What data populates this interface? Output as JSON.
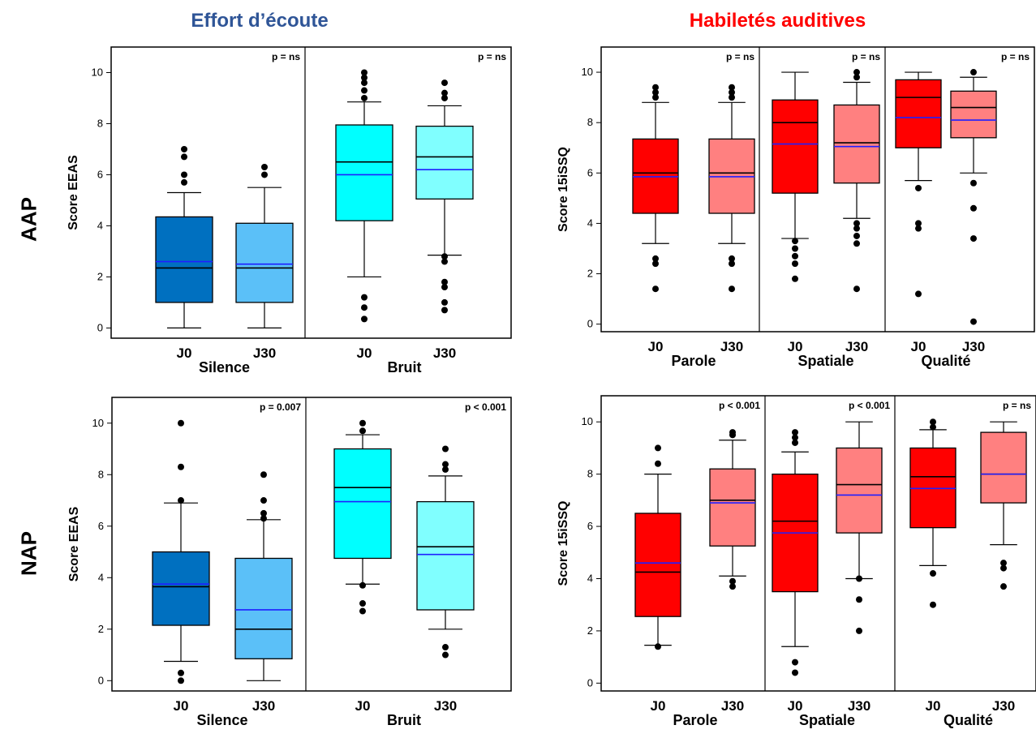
{
  "headings": {
    "left": {
      "text": "Effort d’écoute",
      "color": "#2F5597"
    },
    "right": {
      "text": "Habiletés auditives",
      "color": "#FF0000"
    }
  },
  "row_labels": {
    "top": "AAP",
    "bottom": "NAP"
  },
  "chart_data": [
    {
      "type": "box",
      "id": "aap-eeas",
      "ylabel": "Score EEAS",
      "ylim": [
        -0.4,
        11
      ],
      "yticks": [
        0,
        2,
        4,
        6,
        8,
        10
      ],
      "groups": [
        {
          "label": "Silence",
          "p_value": "p = ns"
        },
        {
          "label": "Bruit",
          "p_value": "p = ns"
        }
      ],
      "boxes": [
        {
          "category": "J0",
          "group": 0,
          "color": "#0070C0",
          "q1": 1.0,
          "median": 2.35,
          "mean": 2.6,
          "q3": 4.35,
          "whisker_low": 0,
          "whisker_high": 5.3,
          "outliers": [
            5.7,
            6.0,
            6.7,
            7.0
          ]
        },
        {
          "category": "J30",
          "group": 0,
          "color": "#5BC0F8",
          "q1": 1.0,
          "median": 2.35,
          "mean": 2.5,
          "q3": 4.1,
          "whisker_low": 0,
          "whisker_high": 5.5,
          "outliers": [
            6.0,
            6.3
          ]
        },
        {
          "category": "J0",
          "group": 1,
          "color": "#00FFFF",
          "q1": 4.2,
          "median": 6.5,
          "mean": 6.0,
          "q3": 7.95,
          "whisker_low": 2.0,
          "whisker_high": 8.85,
          "outliers": [
            0.35,
            0.8,
            1.2,
            9.0,
            9.3,
            9.6,
            9.8,
            10.0
          ]
        },
        {
          "category": "J30",
          "group": 1,
          "color": "#80FFFF",
          "q1": 5.05,
          "median": 6.7,
          "mean": 6.2,
          "q3": 7.9,
          "whisker_low": 2.85,
          "whisker_high": 8.7,
          "outliers": [
            0.7,
            1.0,
            1.6,
            1.8,
            2.6,
            2.8,
            9.0,
            9.2,
            9.6
          ]
        }
      ]
    },
    {
      "type": "box",
      "id": "aap-ssq",
      "ylabel": "Score 15iSSQ",
      "ylim": [
        -0.3,
        11
      ],
      "yticks": [
        0,
        2,
        4,
        6,
        8,
        10
      ],
      "groups": [
        {
          "label": "Parole",
          "p_value": "p = ns"
        },
        {
          "label": "Spatiale",
          "p_value": "p = ns"
        },
        {
          "label": "Qualité",
          "p_value": "p = ns"
        }
      ],
      "boxes": [
        {
          "category": "J0",
          "group": 0,
          "color": "#FF0000",
          "q1": 4.4,
          "median": 6.0,
          "mean": 5.85,
          "q3": 7.35,
          "whisker_low": 3.2,
          "whisker_high": 8.8,
          "outliers": [
            1.4,
            2.4,
            2.6,
            9.0,
            9.2,
            9.4
          ]
        },
        {
          "category": "J30",
          "group": 0,
          "color": "#FF8080",
          "q1": 4.4,
          "median": 6.0,
          "mean": 5.85,
          "q3": 7.35,
          "whisker_low": 3.2,
          "whisker_high": 8.8,
          "outliers": [
            1.4,
            2.4,
            2.6,
            9.0,
            9.2,
            9.4
          ]
        },
        {
          "category": "J0",
          "group": 1,
          "color": "#FF0000",
          "q1": 5.2,
          "median": 8.0,
          "mean": 7.15,
          "q3": 8.9,
          "whisker_low": 3.4,
          "whisker_high": 10.0,
          "outliers": [
            1.8,
            2.4,
            2.7,
            3.0,
            3.3
          ]
        },
        {
          "category": "J30",
          "group": 1,
          "color": "#FF8080",
          "q1": 5.6,
          "median": 7.2,
          "mean": 7.05,
          "q3": 8.7,
          "whisker_low": 4.2,
          "whisker_high": 9.6,
          "outliers": [
            1.4,
            3.2,
            3.5,
            3.8,
            4.0,
            9.8,
            10.0
          ]
        },
        {
          "category": "J0",
          "group": 2,
          "color": "#FF0000",
          "q1": 7.0,
          "median": 9.0,
          "mean": 8.2,
          "q3": 9.7,
          "whisker_low": 5.7,
          "whisker_high": 10.0,
          "outliers": [
            1.2,
            3.8,
            4.0,
            5.4
          ]
        },
        {
          "category": "J30",
          "group": 2,
          "color": "#FF8080",
          "q1": 7.4,
          "median": 8.6,
          "mean": 8.1,
          "q3": 9.25,
          "whisker_low": 6.0,
          "whisker_high": 9.8,
          "outliers": [
            0.1,
            3.4,
            4.6,
            5.6,
            10.0
          ]
        }
      ]
    },
    {
      "type": "box",
      "id": "nap-eeas",
      "ylabel": "Score EEAS",
      "ylim": [
        -0.4,
        11
      ],
      "yticks": [
        0,
        2,
        4,
        6,
        8,
        10
      ],
      "groups": [
        {
          "label": "Silence",
          "p_value": "p = 0.007"
        },
        {
          "label": "Bruit",
          "p_value": "p < 0.001"
        }
      ],
      "boxes": [
        {
          "category": "J0",
          "group": 0,
          "color": "#0070C0",
          "q1": 2.15,
          "median": 3.65,
          "mean": 3.75,
          "q3": 5.0,
          "whisker_low": 0.75,
          "whisker_high": 6.9,
          "outliers": [
            0.0,
            0.3,
            7.0,
            8.3,
            10.0
          ]
        },
        {
          "category": "J30",
          "group": 0,
          "color": "#5BC0F8",
          "q1": 0.85,
          "median": 2.0,
          "mean": 2.75,
          "q3": 4.75,
          "whisker_low": 0,
          "whisker_high": 6.25,
          "outliers": [
            6.3,
            6.5,
            7.0,
            8.0
          ]
        },
        {
          "category": "J0",
          "group": 1,
          "color": "#00FFFF",
          "q1": 4.75,
          "median": 7.5,
          "mean": 6.95,
          "q3": 9.0,
          "whisker_low": 3.75,
          "whisker_high": 9.55,
          "outliers": [
            2.7,
            3.0,
            3.7,
            9.7,
            10.0
          ]
        },
        {
          "category": "J30",
          "group": 1,
          "color": "#80FFFF",
          "q1": 2.75,
          "median": 5.2,
          "mean": 4.9,
          "q3": 6.95,
          "whisker_low": 2.0,
          "whisker_high": 7.95,
          "outliers": [
            1.0,
            1.3,
            8.2,
            8.4,
            9.0
          ]
        }
      ]
    },
    {
      "type": "box",
      "id": "nap-ssq",
      "ylabel": "Score 15iSSQ",
      "ylim": [
        -0.3,
        11
      ],
      "yticks": [
        0,
        2,
        4,
        6,
        8,
        10
      ],
      "groups": [
        {
          "label": "Parole",
          "p_value": "p < 0.001"
        },
        {
          "label": "Spatiale",
          "p_value": "p < 0.001"
        },
        {
          "label": "Qualité",
          "p_value": "p = ns"
        }
      ],
      "boxes": [
        {
          "category": "J0",
          "group": 0,
          "color": "#FF0000",
          "q1": 2.55,
          "median": 4.25,
          "mean": 4.6,
          "q3": 6.5,
          "whisker_low": 1.45,
          "whisker_high": 8.0,
          "outliers": [
            1.4,
            8.4,
            9.0
          ]
        },
        {
          "category": "J30",
          "group": 0,
          "color": "#FF8080",
          "q1": 5.25,
          "median": 7.0,
          "mean": 6.9,
          "q3": 8.2,
          "whisker_low": 4.1,
          "whisker_high": 9.3,
          "outliers": [
            3.7,
            3.9,
            9.5,
            9.6
          ]
        },
        {
          "category": "J0",
          "group": 1,
          "color": "#FF0000",
          "q1": 3.5,
          "median": 6.2,
          "mean": 5.75,
          "q3": 8.0,
          "whisker_low": 1.4,
          "whisker_high": 8.85,
          "outliers": [
            0.4,
            0.8,
            9.2,
            9.4,
            9.6
          ]
        },
        {
          "category": "J30",
          "group": 1,
          "color": "#FF8080",
          "q1": 5.75,
          "median": 7.6,
          "mean": 7.2,
          "q3": 9.0,
          "whisker_low": 4.0,
          "whisker_high": 10.0,
          "outliers": [
            2.0,
            3.2,
            4.0
          ]
        },
        {
          "category": "J0",
          "group": 2,
          "color": "#FF0000",
          "q1": 5.95,
          "median": 7.9,
          "mean": 7.45,
          "q3": 9.0,
          "whisker_low": 4.5,
          "whisker_high": 9.7,
          "outliers": [
            3.0,
            4.2,
            9.8,
            10.0
          ]
        },
        {
          "category": "J30",
          "group": 2,
          "color": "#FF8080",
          "q1": 6.9,
          "median": 8.0,
          "mean": 8.0,
          "q3": 9.6,
          "whisker_low": 5.3,
          "whisker_high": 10.0,
          "outliers": [
            3.7,
            4.4,
            4.6
          ]
        }
      ]
    }
  ]
}
